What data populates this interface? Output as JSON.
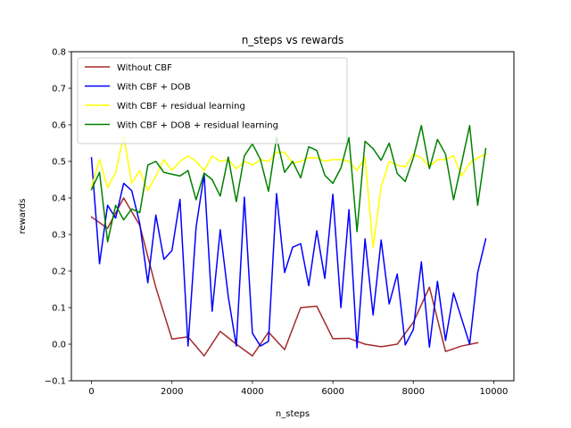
{
  "chart_data": {
    "type": "line",
    "title": "n_steps vs rewards",
    "xlabel": "n_steps",
    "ylabel": "rewards",
    "xlim": [
      -500,
      10500
    ],
    "ylim": [
      -0.1,
      0.8
    ],
    "xticks": [
      0,
      2000,
      4000,
      6000,
      8000,
      10000
    ],
    "xtick_labels": [
      "0",
      "2000",
      "4000",
      "6000",
      "8000",
      "10000"
    ],
    "yticks": [
      -0.1,
      0.0,
      0.1,
      0.2,
      0.3,
      0.4,
      0.5,
      0.6,
      0.7,
      0.8
    ],
    "ytick_labels": [
      "−0.1",
      "0.0",
      "0.1",
      "0.2",
      "0.3",
      "0.4",
      "0.5",
      "0.6",
      "0.7",
      "0.8"
    ],
    "legend_position": "top-left",
    "series": [
      {
        "name": "Without CBF",
        "color": "#a52a2a",
        "x": [
          0,
          400,
          800,
          1200,
          1600,
          2000,
          2400,
          2800,
          3200,
          3600,
          4000,
          4400,
          4800,
          5200,
          5600,
          6000,
          6400,
          6800,
          7200,
          7600,
          8000,
          8400,
          8800,
          9200,
          9600
        ],
        "values": [
          0.348,
          0.317,
          0.4,
          0.325,
          0.155,
          0.014,
          0.02,
          -0.032,
          0.035,
          0.0,
          -0.032,
          0.033,
          -0.015,
          0.1,
          0.104,
          0.015,
          0.016,
          0.0,
          -0.007,
          0.0,
          0.06,
          0.156,
          -0.02,
          -0.005,
          0.004
        ]
      },
      {
        "name": "With CBF + DOB",
        "color": "#0000ff",
        "x": [
          0,
          200,
          400,
          600,
          800,
          1000,
          1200,
          1400,
          1600,
          1800,
          2000,
          2200,
          2400,
          2600,
          2800,
          3000,
          3200,
          3400,
          3600,
          3800,
          4000,
          4200,
          4400,
          4600,
          4800,
          5000,
          5200,
          5400,
          5600,
          5800,
          6000,
          6200,
          6400,
          6600,
          6800,
          7000,
          7200,
          7400,
          7600,
          7800,
          8000,
          8200,
          8400,
          8600,
          8800,
          9000,
          9200,
          9400,
          9600,
          9800
        ],
        "values": [
          0.51,
          0.22,
          0.38,
          0.345,
          0.44,
          0.42,
          0.33,
          0.168,
          0.353,
          0.232,
          0.256,
          0.396,
          -0.005,
          0.32,
          0.465,
          0.09,
          0.313,
          0.13,
          -0.005,
          0.402,
          0.03,
          -0.005,
          0.008,
          0.412,
          0.196,
          0.265,
          0.275,
          0.16,
          0.31,
          0.18,
          0.41,
          0.1,
          0.368,
          -0.01,
          0.288,
          0.08,
          0.285,
          0.11,
          0.192,
          -0.002,
          0.04,
          0.225,
          -0.008,
          0.172,
          0.01,
          0.14,
          0.07,
          0.0,
          0.196,
          0.288
        ]
      },
      {
        "name": "With CBF + residual learning",
        "color": "#ffff00",
        "x": [
          0,
          200,
          400,
          600,
          800,
          1000,
          1200,
          1400,
          1600,
          1800,
          2000,
          2200,
          2400,
          2600,
          2800,
          3000,
          3200,
          3400,
          3600,
          3800,
          4000,
          4200,
          4400,
          4600,
          4800,
          5000,
          5200,
          5400,
          5600,
          5800,
          6000,
          6200,
          6400,
          6600,
          6800,
          7000,
          7200,
          7400,
          7600,
          7800,
          8000,
          8200,
          8400,
          8600,
          8800,
          9000,
          9200,
          9400,
          9600,
          9800
        ],
        "values": [
          0.43,
          0.505,
          0.428,
          0.47,
          0.57,
          0.44,
          0.475,
          0.42,
          0.46,
          0.505,
          0.475,
          0.5,
          0.515,
          0.5,
          0.475,
          0.515,
          0.5,
          0.505,
          0.48,
          0.5,
          0.49,
          0.505,
          0.5,
          0.525,
          0.525,
          0.495,
          0.5,
          0.51,
          0.51,
          0.5,
          0.505,
          0.505,
          0.5,
          0.475,
          0.51,
          0.265,
          0.43,
          0.5,
          0.49,
          0.485,
          0.52,
          0.51,
          0.485,
          0.505,
          0.505,
          0.515,
          0.46,
          0.495,
          0.51,
          0.52
        ]
      },
      {
        "name": "With CBF + DOB + residual learning",
        "color": "#008000",
        "x": [
          0,
          200,
          400,
          600,
          800,
          1000,
          1200,
          1400,
          1600,
          1800,
          2000,
          2200,
          2400,
          2600,
          2800,
          3000,
          3200,
          3400,
          3600,
          3800,
          4000,
          4200,
          4400,
          4600,
          4800,
          5000,
          5200,
          5400,
          5600,
          5800,
          6000,
          6200,
          6400,
          6600,
          6800,
          7000,
          7200,
          7400,
          7600,
          7800,
          8000,
          8200,
          8400,
          8600,
          8800,
          9000,
          9200,
          9400,
          9600,
          9800
        ],
        "values": [
          0.423,
          0.47,
          0.28,
          0.38,
          0.34,
          0.37,
          0.36,
          0.49,
          0.5,
          0.47,
          0.465,
          0.46,
          0.475,
          0.395,
          0.468,
          0.45,
          0.405,
          0.512,
          0.39,
          0.515,
          0.548,
          0.505,
          0.418,
          0.565,
          0.47,
          0.5,
          0.455,
          0.54,
          0.53,
          0.462,
          0.44,
          0.482,
          0.565,
          0.308,
          0.555,
          0.535,
          0.503,
          0.55,
          0.467,
          0.445,
          0.51,
          0.598,
          0.48,
          0.56,
          0.52,
          0.395,
          0.495,
          0.598,
          0.38,
          0.535
        ]
      }
    ]
  }
}
